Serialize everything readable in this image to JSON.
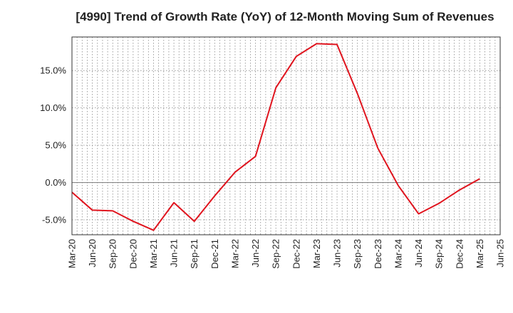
{
  "chart_data": {
    "type": "line",
    "title": "[4990]  Trend of Growth Rate (YoY) of 12-Month Moving Sum of Revenues",
    "xlabel": "",
    "ylabel": "",
    "x_ticks": [
      "Mar-20",
      "Jun-20",
      "Sep-20",
      "Dec-20",
      "Mar-21",
      "Jun-21",
      "Sep-21",
      "Dec-21",
      "Mar-22",
      "Jun-22",
      "Sep-22",
      "Dec-22",
      "Mar-23",
      "Jun-23",
      "Sep-23",
      "Dec-23",
      "Mar-24",
      "Jun-24",
      "Sep-24",
      "Dec-24",
      "Mar-25",
      "Jun-25"
    ],
    "y_ticks": [
      "-5.0%",
      "0.0%",
      "5.0%",
      "10.0%",
      "15.0%"
    ],
    "y_tick_values": [
      -5,
      0,
      5,
      10,
      15
    ],
    "ylim": [
      -7,
      19.5
    ],
    "grid": true,
    "series": [
      {
        "color": "#e0141e",
        "x": [
          "Mar-20",
          "Jun-20",
          "Sep-20",
          "Dec-20",
          "Mar-21",
          "Jun-21",
          "Sep-21",
          "Dec-21",
          "Mar-22",
          "Jun-22",
          "Sep-22",
          "Dec-22",
          "Mar-23",
          "Jun-23",
          "Sep-23",
          "Dec-23",
          "Mar-24",
          "Jun-24",
          "Sep-24",
          "Dec-24",
          "Mar-25"
        ],
        "values": [
          -1.3,
          -3.7,
          -3.8,
          -5.2,
          -6.4,
          -2.7,
          -5.2,
          -1.8,
          1.4,
          3.5,
          12.7,
          16.9,
          18.6,
          18.5,
          11.9,
          4.6,
          -0.4,
          -4.2,
          -2.8,
          -1.0,
          0.5
        ]
      }
    ]
  }
}
